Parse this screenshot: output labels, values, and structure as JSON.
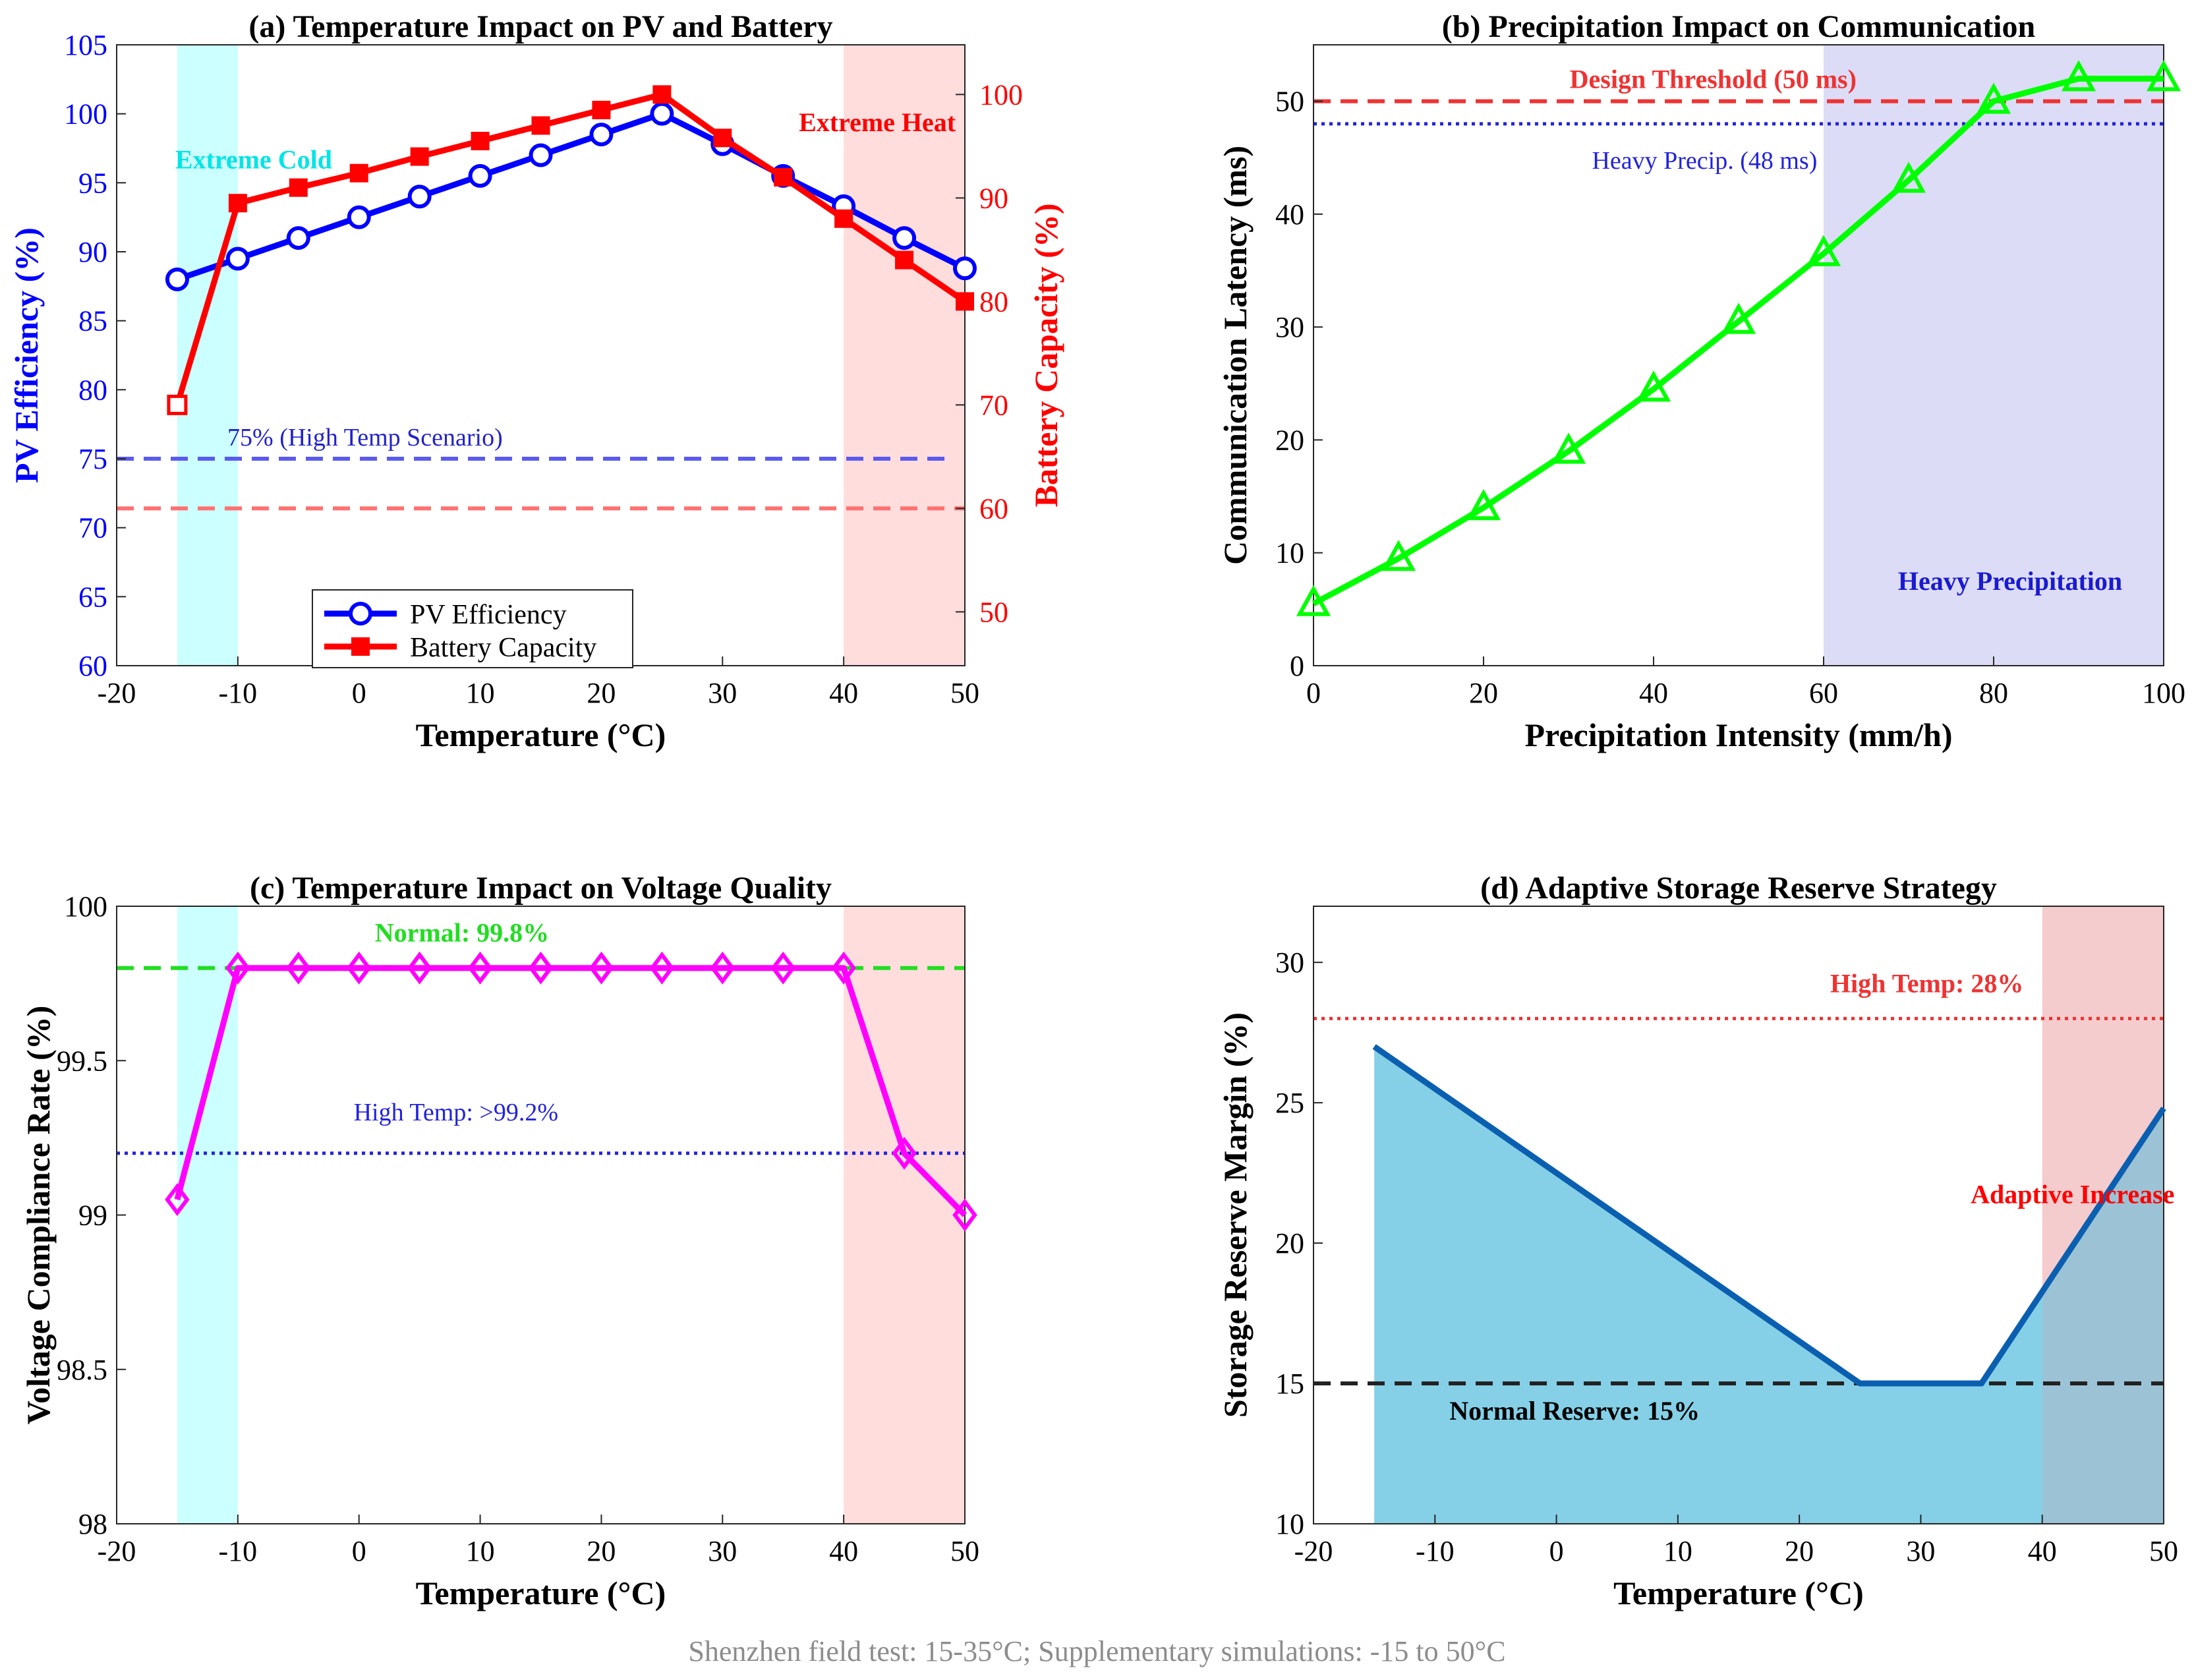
{
  "colors": {
    "blue": "#0000ff",
    "red": "#ff0000",
    "green": "#00ff00",
    "magenta": "#ff00ff",
    "cold_band": "#ccffff",
    "heat_band": "#ffdddd",
    "heavy_band": "#dcdcf7",
    "reserve_fill": "#7ecde6",
    "reserve_line": "#0b5fb0"
  },
  "caption": "Shenzhen field test: 15-35°C; Supplementary simulations: -15 to 50°C",
  "chart_data": [
    {
      "id": "a",
      "type": "line",
      "title": "(a) Temperature Impact on PV and Battery",
      "xlabel": "Temperature (°C)",
      "ylabel": "PV Efficiency (%)",
      "ylabel_right": "Battery Capacity (%)",
      "xlim": [
        -20,
        50
      ],
      "ylim": [
        60,
        105
      ],
      "ylim_right": [
        44.8,
        104.8
      ],
      "xticks": [
        -20,
        -10,
        0,
        10,
        20,
        30,
        40,
        50
      ],
      "yticks": [
        60,
        65,
        70,
        75,
        80,
        85,
        90,
        95,
        100,
        105
      ],
      "yticks_right": [
        50,
        60,
        70,
        80,
        90,
        100
      ],
      "x": [
        -15,
        -10,
        -5,
        0,
        5,
        10,
        15,
        20,
        25,
        30,
        35,
        40,
        45,
        50
      ],
      "series": [
        {
          "name": "PV Efficiency",
          "axis": "left",
          "color": "#0000ff",
          "marker": "circle",
          "values": [
            88,
            89.5,
            91,
            92.5,
            94,
            95.5,
            97,
            98.5,
            100,
            97.8,
            95.5,
            93.3,
            91,
            88.8
          ]
        },
        {
          "name": "Battery Capacity",
          "axis": "right",
          "color": "#ff0000",
          "marker": "square",
          "values": [
            70,
            89.5,
            91,
            92.4,
            94,
            95.5,
            97,
            98.5,
            100,
            95.8,
            92,
            88,
            84,
            80
          ]
        }
      ],
      "bands": [
        {
          "x0": -15,
          "x1": -10,
          "kind": "cold",
          "label": "Extreme Cold"
        },
        {
          "x0": 40,
          "x1": 50,
          "kind": "heat",
          "label": "Extreme Heat"
        }
      ],
      "hlines": [
        {
          "axis": "left",
          "y": 75,
          "x0": -20,
          "x1": 49,
          "color": "#5a5af0",
          "style": "dashed",
          "label": "75% (High Temp Scenario)"
        },
        {
          "axis": "right",
          "y": 60,
          "x0": -20,
          "x1": 50,
          "color": "#ff7070",
          "style": "dashed",
          "label": ""
        }
      ],
      "legend": "bottom-center",
      "grid": false
    },
    {
      "id": "b",
      "type": "line",
      "title": "(b) Precipitation Impact on Communication",
      "xlabel": "Precipitation Intensity (mm/h)",
      "ylabel": "Communication Latency (ms)",
      "xlim": [
        0,
        100
      ],
      "ylim": [
        0,
        55
      ],
      "xticks": [
        0,
        20,
        40,
        60,
        80,
        100
      ],
      "yticks": [
        0,
        10,
        20,
        30,
        40,
        50
      ],
      "x": [
        0,
        10,
        20,
        30,
        40,
        50,
        60,
        70,
        80,
        90,
        100
      ],
      "series": [
        {
          "name": "",
          "color": "#00ff00",
          "marker": "triangle",
          "values": [
            5.5,
            9.5,
            14,
            19,
            24.5,
            30.5,
            36.5,
            43,
            50,
            52,
            52
          ]
        }
      ],
      "bands": [
        {
          "x0": 60,
          "x1": 100,
          "kind": "heavy",
          "label": "Heavy Precipitation"
        }
      ],
      "hlines": [
        {
          "y": 50,
          "color": "#ee3333",
          "style": "dashed",
          "label": "Design Threshold (50 ms)"
        },
        {
          "y": 48,
          "color": "#2222dd",
          "style": "dotted",
          "label": "Heavy Precip. (48 ms)"
        }
      ],
      "grid": false
    },
    {
      "id": "c",
      "type": "line",
      "title": "(c) Temperature Impact on Voltage Quality",
      "xlabel": "Temperature (°C)",
      "ylabel": "Voltage Compliance Rate (%)",
      "xlim": [
        -20,
        50
      ],
      "ylim": [
        98,
        100
      ],
      "xticks": [
        -20,
        -10,
        0,
        10,
        20,
        30,
        40,
        50
      ],
      "yticks": [
        98,
        98.5,
        99,
        99.5,
        100
      ],
      "x": [
        -15,
        -10,
        -5,
        0,
        5,
        10,
        15,
        20,
        25,
        30,
        35,
        40,
        45,
        50
      ],
      "series": [
        {
          "name": "",
          "color": "#ff00ff",
          "marker": "diamond",
          "values": [
            99.05,
            99.8,
            99.8,
            99.8,
            99.8,
            99.8,
            99.8,
            99.8,
            99.8,
            99.8,
            99.8,
            99.8,
            99.2,
            99.0
          ]
        }
      ],
      "bands": [
        {
          "x0": -15,
          "x1": -10,
          "kind": "cold",
          "label": ""
        },
        {
          "x0": 40,
          "x1": 50,
          "kind": "heat",
          "label": ""
        }
      ],
      "hlines": [
        {
          "y": 99.8,
          "color": "#22dd22",
          "style": "dashed",
          "label": "Normal: 99.8%"
        },
        {
          "y": 99.2,
          "color": "#2222dd",
          "style": "dotted",
          "label": "High Temp: >99.2%"
        }
      ],
      "grid": false
    },
    {
      "id": "d",
      "type": "area",
      "title": "(d) Adaptive Storage Reserve Strategy",
      "xlabel": "Temperature (°C)",
      "ylabel": "Storage Reserve Margin (%)",
      "xlim": [
        -20,
        50
      ],
      "ylim": [
        10,
        32
      ],
      "xticks": [
        -20,
        -10,
        0,
        10,
        20,
        30,
        40,
        50
      ],
      "yticks": [
        10,
        15,
        20,
        25,
        30
      ],
      "x": [
        -15,
        25,
        35,
        50
      ],
      "series": [
        {
          "name": "",
          "color": "#0b5fb0",
          "values": [
            27,
            15,
            15,
            24.8
          ]
        }
      ],
      "bands": [
        {
          "x0": 40,
          "x1": 50,
          "kind": "heat",
          "label": "Adaptive Increase"
        }
      ],
      "hlines": [
        {
          "y": 28,
          "color": "#ee3333",
          "style": "dotted",
          "label": "High Temp: 28%"
        },
        {
          "y": 15,
          "color": "#222222",
          "style": "dashed",
          "label": "Normal Reserve: 15%"
        }
      ],
      "grid": false
    }
  ]
}
